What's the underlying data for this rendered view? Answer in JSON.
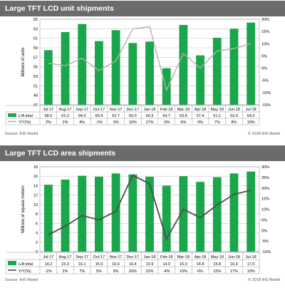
{
  "panels": [
    {
      "title": "Large TFT LCD unit shipments",
      "source": "Source: IHS Markit",
      "copyright": "© 2018 IHS Markit"
    },
    {
      "title": "Large TFT LCD area shipments",
      "source": "Source: IHS Markit",
      "copyright": "© 2018 IHS Markit"
    }
  ],
  "colors": {
    "bar": "#1aa64a",
    "line1": "#b0b0b0",
    "line2": "#4d4d4d",
    "banner": "#6b6b6b",
    "grid": "#c8c8c8"
  },
  "chart_data": [
    {
      "type": "bar",
      "title": "Large TFT LCD unit shipments",
      "categories": [
        "Jul-17",
        "Aug-17",
        "Sep-17",
        "Oct-17",
        "Nov-17",
        "Dec-17",
        "Jan-18",
        "Feb-18",
        "Mar-18",
        "Apr-18",
        "May-18",
        "Jun-18",
        "Jul-18"
      ],
      "ylabel": "Millions of units",
      "ylim": [
        47,
        65
      ],
      "yticks": [
        47,
        49,
        51,
        53,
        55,
        57,
        59,
        61,
        63,
        65
      ],
      "y2lim": [
        -15,
        20
      ],
      "y2ticks": [
        "-15%",
        "-10%",
        "-5%",
        "0%",
        "5%",
        "10%",
        "15%",
        "20%"
      ],
      "y2tick_values": [
        -15,
        -10,
        -5,
        0,
        5,
        10,
        15,
        20
      ],
      "series": [
        {
          "name": "L/A total",
          "kind": "bar",
          "axis": "left",
          "values": [
            58.5,
            62.3,
            64.0,
            60.4,
            62.7,
            60.0,
            60.3,
            54.7,
            63.8,
            57.4,
            61.1,
            63.0,
            64.3
          ],
          "labels": [
            "58.5",
            "62.3",
            "64.0",
            "60.4",
            "62.7",
            "60.0",
            "60.3",
            "54.7",
            "63.8",
            "57.4",
            "61.1",
            "63.0",
            "64.3"
          ]
        },
        {
          "name": "Y/Y(%)",
          "kind": "line",
          "axis": "right",
          "values": [
            2,
            1,
            4,
            -1,
            3,
            16,
            17,
            -9,
            6,
            0,
            7,
            8,
            10
          ],
          "labels": [
            "2%",
            "1%",
            "4%",
            "-1%",
            "3%",
            "16%",
            "17%",
            "-9%",
            "6%",
            "0%",
            "7%",
            "8%",
            "10%"
          ]
        }
      ],
      "grid": true,
      "legend": "table-below"
    },
    {
      "type": "bar",
      "title": "Large TFT LCD area shipments",
      "categories": [
        "Jul-17",
        "Aug-17",
        "Sep-17",
        "Oct-17",
        "Nov-17",
        "Dec-17",
        "Jan-18",
        "Feb-18",
        "Mar-18",
        "Apr-18",
        "May-18",
        "Jun-18",
        "Jul-18"
      ],
      "ylabel": "Millions of square meters",
      "ylim": [
        0,
        18
      ],
      "yticks": [
        0,
        2,
        4,
        6,
        8,
        10,
        12,
        14,
        16,
        18
      ],
      "y2lim": [
        -10,
        30
      ],
      "y2ticks": [
        "-10%",
        "-5%",
        "0%",
        "5%",
        "10%",
        "15%",
        "20%",
        "25%",
        "30%"
      ],
      "y2tick_values": [
        -10,
        -5,
        0,
        5,
        10,
        15,
        20,
        25,
        30
      ],
      "series": [
        {
          "name": "L/A total",
          "kind": "bar",
          "axis": "left",
          "values": [
            14.2,
            15.3,
            16.1,
            15.9,
            16.6,
            16.4,
            15.9,
            14.0,
            16.0,
            14.8,
            15.8,
            16.6,
            17.0
          ],
          "labels": [
            "14.2",
            "15.3",
            "16.1",
            "15.9",
            "16.6",
            "16.4",
            "15.9",
            "14.0",
            "16.0",
            "14.8",
            "15.8",
            "16.6",
            "17.0"
          ]
        },
        {
          "name": "Y/Y(%)",
          "kind": "line",
          "axis": "right",
          "values": [
            -2,
            2,
            7,
            5,
            9,
            26,
            22,
            -4,
            10,
            6,
            12,
            17,
            19
          ],
          "labels": [
            "-2%",
            "2%",
            "7%",
            "5%",
            "9%",
            "26%",
            "22%",
            "-4%",
            "10%",
            "6%",
            "12%",
            "17%",
            "19%"
          ]
        }
      ],
      "grid": true,
      "legend": "table-below"
    }
  ]
}
